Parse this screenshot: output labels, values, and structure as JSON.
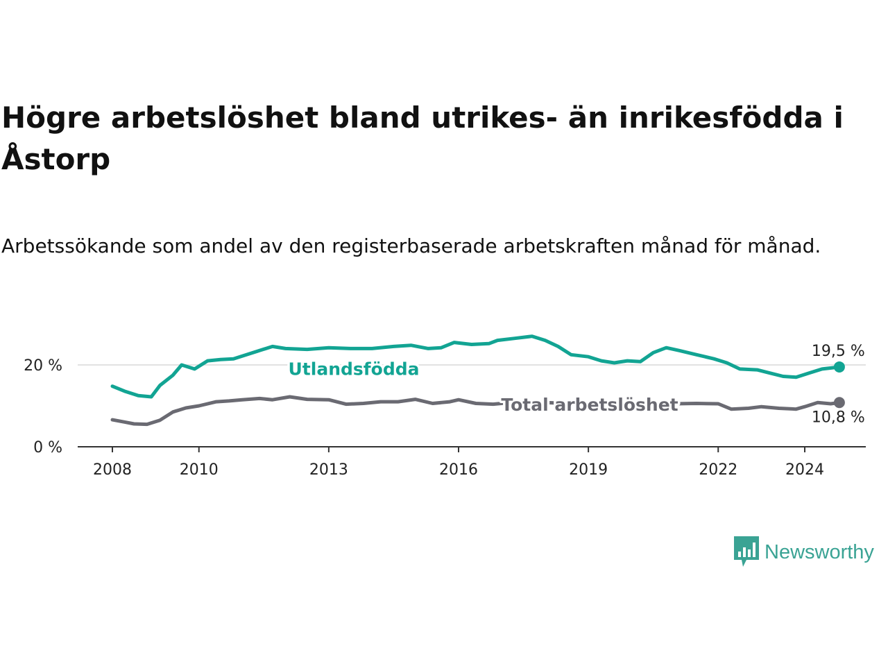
{
  "title": "Högre arbetslöshet bland utrikes- än inrikesfödda i Åstorp",
  "subtitle": "Arbetssökande som andel av den registerbaserade arbetskraften månad för månad.",
  "brand": {
    "name": "Newsworthy",
    "icon": "bar-chart-speech-bubble-icon",
    "color": "#3aa394"
  },
  "chart_data": {
    "type": "line",
    "title": "Högre arbetslöshet bland utrikes- än inrikesfödda i Åstorp",
    "xlabel": "",
    "ylabel": "",
    "x_ticks": [
      "2008",
      "2010",
      "2013",
      "2016",
      "2019",
      "2022",
      "2024"
    ],
    "y_ticks": [
      "0 %",
      "20 %"
    ],
    "ylim": [
      0,
      30
    ],
    "xlim": [
      2007.5,
      2025.3
    ],
    "grid": "horizontal",
    "series": [
      {
        "name": "Utlandsfödda",
        "color": "#12a493",
        "end_label": "19,5 %",
        "points": [
          [
            2008.0,
            14.8
          ],
          [
            2008.3,
            13.5
          ],
          [
            2008.6,
            12.5
          ],
          [
            2008.9,
            12.2
          ],
          [
            2009.1,
            15.0
          ],
          [
            2009.4,
            17.5
          ],
          [
            2009.6,
            20.0
          ],
          [
            2009.9,
            19.0
          ],
          [
            2010.2,
            21.0
          ],
          [
            2010.5,
            21.3
          ],
          [
            2010.8,
            21.5
          ],
          [
            2011.1,
            22.5
          ],
          [
            2011.4,
            23.5
          ],
          [
            2011.7,
            24.5
          ],
          [
            2012.0,
            24.0
          ],
          [
            2012.5,
            23.8
          ],
          [
            2013.0,
            24.2
          ],
          [
            2013.5,
            24.0
          ],
          [
            2014.0,
            24.0
          ],
          [
            2014.5,
            24.5
          ],
          [
            2014.9,
            24.8
          ],
          [
            2015.3,
            24.0
          ],
          [
            2015.6,
            24.2
          ],
          [
            2015.9,
            25.5
          ],
          [
            2016.3,
            25.0
          ],
          [
            2016.7,
            25.2
          ],
          [
            2016.9,
            26.0
          ],
          [
            2017.3,
            26.5
          ],
          [
            2017.7,
            27.0
          ],
          [
            2018.0,
            26.0
          ],
          [
            2018.3,
            24.5
          ],
          [
            2018.6,
            22.5
          ],
          [
            2019.0,
            22.0
          ],
          [
            2019.3,
            21.0
          ],
          [
            2019.6,
            20.5
          ],
          [
            2019.9,
            21.0
          ],
          [
            2020.2,
            20.8
          ],
          [
            2020.5,
            23.0
          ],
          [
            2020.8,
            24.2
          ],
          [
            2021.1,
            23.5
          ],
          [
            2021.5,
            22.5
          ],
          [
            2021.9,
            21.5
          ],
          [
            2022.2,
            20.5
          ],
          [
            2022.5,
            19.0
          ],
          [
            2022.9,
            18.8
          ],
          [
            2023.2,
            18.0
          ],
          [
            2023.5,
            17.2
          ],
          [
            2023.8,
            17.0
          ],
          [
            2024.1,
            18.0
          ],
          [
            2024.4,
            19.0
          ],
          [
            2024.8,
            19.5
          ]
        ]
      },
      {
        "name": "Total arbetslöshet",
        "color": "#6a6a72",
        "end_label": "10,8 %",
        "points": [
          [
            2008.0,
            6.6
          ],
          [
            2008.3,
            6.0
          ],
          [
            2008.5,
            5.6
          ],
          [
            2008.8,
            5.5
          ],
          [
            2009.1,
            6.5
          ],
          [
            2009.4,
            8.5
          ],
          [
            2009.7,
            9.5
          ],
          [
            2010.0,
            10.0
          ],
          [
            2010.4,
            11.0
          ],
          [
            2010.7,
            11.2
          ],
          [
            2011.0,
            11.5
          ],
          [
            2011.4,
            11.8
          ],
          [
            2011.7,
            11.5
          ],
          [
            2012.1,
            12.2
          ],
          [
            2012.5,
            11.6
          ],
          [
            2013.0,
            11.5
          ],
          [
            2013.4,
            10.4
          ],
          [
            2013.8,
            10.6
          ],
          [
            2014.2,
            11.0
          ],
          [
            2014.6,
            11.0
          ],
          [
            2015.0,
            11.6
          ],
          [
            2015.4,
            10.6
          ],
          [
            2015.8,
            11.0
          ],
          [
            2016.0,
            11.5
          ],
          [
            2016.4,
            10.6
          ],
          [
            2016.8,
            10.4
          ],
          [
            2017.2,
            10.8
          ],
          [
            2017.6,
            11.0
          ],
          [
            2018.0,
            10.8
          ],
          [
            2018.5,
            10.6
          ],
          [
            2019.0,
            10.5
          ],
          [
            2019.5,
            10.6
          ],
          [
            2020.0,
            10.8
          ],
          [
            2020.5,
            10.6
          ],
          [
            2021.0,
            10.5
          ],
          [
            2021.5,
            10.6
          ],
          [
            2022.0,
            10.5
          ],
          [
            2022.3,
            9.2
          ],
          [
            2022.7,
            9.4
          ],
          [
            2023.0,
            9.8
          ],
          [
            2023.4,
            9.4
          ],
          [
            2023.8,
            9.2
          ],
          [
            2024.0,
            9.8
          ],
          [
            2024.3,
            10.8
          ],
          [
            2024.6,
            10.5
          ],
          [
            2024.8,
            10.8
          ]
        ]
      }
    ]
  }
}
